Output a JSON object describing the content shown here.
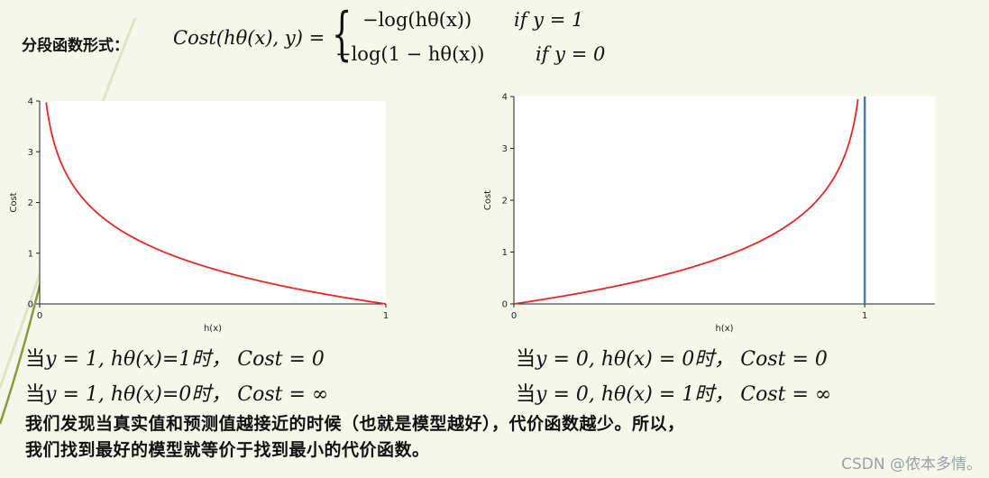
{
  "formula": {
    "prefix": "分段函数形式：",
    "lhs": "Cost(hθ(x), y) =",
    "case1_expr": "−log(hθ(x))",
    "case1_cond": "if y = 1",
    "case2_expr": "−log(1 − hθ(x))",
    "case2_cond": "if y = 0"
  },
  "chart_data": [
    {
      "type": "line",
      "series": [
        {
          "function": "-log(x)",
          "color": "#e8262a"
        }
      ],
      "xlabel": "h(x)",
      "ylabel": "Cost",
      "xlim": [
        0,
        1
      ],
      "ylim": [
        0,
        4
      ],
      "x_ticks": [
        "0",
        "1"
      ],
      "y_ticks": [
        "0",
        "1",
        "2",
        "3",
        "4"
      ],
      "grid": false
    },
    {
      "type": "line",
      "series": [
        {
          "function": "-log(1-x)",
          "color": "#e8262a"
        }
      ],
      "vertical_line": {
        "x": 1,
        "color": "#3b7fb5"
      },
      "xlabel": "h(x)",
      "ylabel": "Cost",
      "xlim": [
        0,
        1.2
      ],
      "ylim": [
        0,
        4
      ],
      "x_ticks": [
        "0",
        "1"
      ],
      "y_ticks": [
        "0",
        "1",
        "2",
        "3",
        "4"
      ],
      "grid": false
    }
  ],
  "statements": {
    "s1_prefix": "当",
    "s1_body": "y = 1, hθ(x)=1时， Cost = 0",
    "s2_prefix": "当",
    "s2_body": "y = 1, hθ(x)=0时， Cost = ∞",
    "s3_prefix": "当",
    "s3_body": "y = 0, hθ(x) = 0时， Cost = 0",
    "s4_prefix": "当",
    "s4_body": "y = 0, hθ(x) = 1时， Cost = ∞"
  },
  "summary": {
    "line1": "我们发现当真实值和预测值越接近的时候（也就是模型越好），代价函数越少。所以，",
    "line2": "我们找到最好的模型就等价于找到最小的代价函数。"
  },
  "watermark": "CSDN @侬本多情。",
  "colors": {
    "curve": "#e8262a",
    "vline": "#3b7fb5",
    "background": "#f5f7ea"
  }
}
